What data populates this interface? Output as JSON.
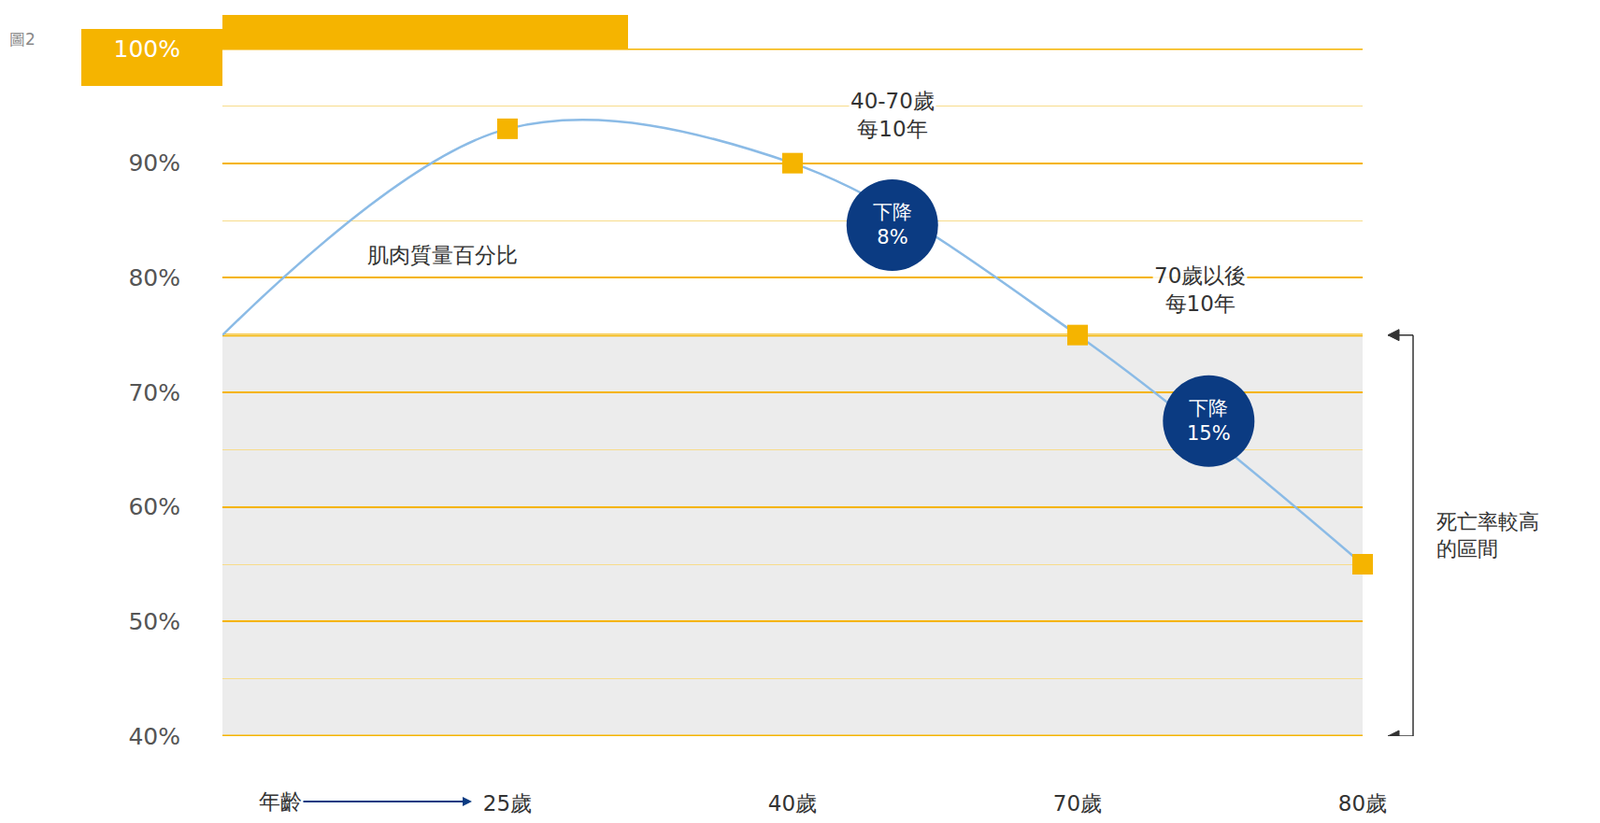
{
  "chart_data": {
    "type": "line",
    "figure_label": "圖2",
    "xlabel": "年齡",
    "categories": [
      null,
      "25歲",
      "40歲",
      "70歲",
      "80歲"
    ],
    "series": [
      {
        "name": "肌肉質量百分比",
        "color": "#8bbbe6",
        "values": [
          75,
          93,
          90,
          75,
          55
        ],
        "marker": "square",
        "line_style": "solid"
      }
    ],
    "ylim": [
      40,
      100
    ],
    "yticks": [
      {
        "value": 40,
        "label": "40%"
      },
      {
        "value": 50,
        "label": "50%"
      },
      {
        "value": 60,
        "label": "60%"
      },
      {
        "value": 70,
        "label": "70%"
      },
      {
        "value": 80,
        "label": "80%"
      },
      {
        "value": 90,
        "label": "90%"
      },
      {
        "value": 100,
        "label": "100%"
      }
    ],
    "grid": true,
    "annotations": [
      {
        "text": "40-70歲\n每10年"
      },
      {
        "text": "下降\n8%"
      },
      {
        "text": "70歲以後\n每10年"
      },
      {
        "text": "下降\n15%"
      }
    ],
    "high_mortality_zone": {
      "label": "死亡率較高的區間",
      "range": [
        40,
        75
      ]
    }
  }
}
